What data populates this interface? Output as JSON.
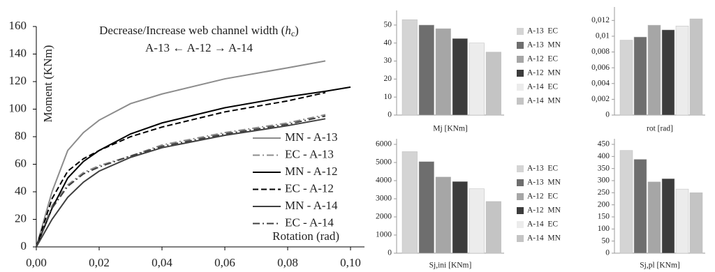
{
  "chart_data": [
    {
      "type": "line",
      "title": "Decrease/Increase web channel width",
      "title_symbol": "h",
      "title_subscript": "c",
      "subtitle": "A-13 ← A-12 → A-14",
      "ylabel": "Moment  (KNm)",
      "xlabel": "Rotation  (rad)",
      "x": [
        0,
        0.005,
        0.01,
        0.015,
        0.02,
        0.03,
        0.04,
        0.06,
        0.08,
        0.092,
        0.1
      ],
      "xlim": [
        0,
        0.1
      ],
      "xticks": [
        {
          "value": 0,
          "label": "0,00"
        },
        {
          "value": 0.02,
          "label": "0,02"
        },
        {
          "value": 0.04,
          "label": "0,04"
        },
        {
          "value": 0.06,
          "label": "0,06"
        },
        {
          "value": 0.08,
          "label": "0,08"
        },
        {
          "value": 0.1,
          "label": "0,10"
        }
      ],
      "ylim": [
        0,
        160
      ],
      "yticks": [
        0,
        20,
        40,
        60,
        80,
        100,
        120,
        140,
        160
      ],
      "legend": "lower right",
      "series": [
        {
          "name": "MN - A-13",
          "color": "#8c8c8c",
          "dash": "solid",
          "values": [
            0,
            40,
            70,
            83,
            92,
            104,
            111,
            122,
            130,
            135,
            null
          ]
        },
        {
          "name": "EC - A-13",
          "color": "#8c8c8c",
          "dash": "dashdot",
          "values": [
            0,
            30,
            45,
            54,
            59,
            66,
            74,
            83,
            90,
            96,
            null
          ]
        },
        {
          "name": "MN - A-12",
          "color": "#000000",
          "dash": "solid",
          "values": [
            0,
            28,
            50,
            62,
            70,
            82,
            90,
            101,
            109,
            113,
            116
          ]
        },
        {
          "name": "EC - A-12",
          "color": "#000000",
          "dash": "dashed",
          "values": [
            0,
            35,
            55,
            64,
            70,
            80,
            87,
            98,
            106,
            112,
            null
          ]
        },
        {
          "name": "MN - A-14",
          "color": "#404040",
          "dash": "solid",
          "values": [
            0,
            20,
            36,
            47,
            55,
            65,
            72,
            81,
            88,
            93,
            null
          ]
        },
        {
          "name": "EC - A-14",
          "color": "#404040",
          "dash": "dashdot",
          "values": [
            0,
            28,
            44,
            53,
            58,
            66,
            73,
            82,
            89,
            95,
            null
          ]
        }
      ]
    },
    {
      "type": "bar",
      "xlabel": "Mj [KNm]",
      "categories": [
        "A-13  EC",
        "A-13  MN",
        "A-12  EC",
        "A-12  MN",
        "A-14  EC",
        "A-14  MN"
      ],
      "colors": [
        "#d4d4d4",
        "#6e6e6e",
        "#a6a6a6",
        "#3c3c3c",
        "#ececec",
        "#c4c4c4"
      ],
      "values": [
        53,
        50,
        48,
        42.5,
        40,
        35
      ],
      "ylim": [
        0,
        55
      ],
      "yticks": [
        0,
        10,
        20,
        30,
        40,
        50
      ]
    },
    {
      "type": "bar",
      "xlabel": "rot [rad]",
      "colors": [
        "#d4d4d4",
        "#6e6e6e",
        "#a6a6a6",
        "#3c3c3c",
        "#ececec",
        "#c4c4c4"
      ],
      "values": [
        0.0095,
        0.0099,
        0.0114,
        0.0108,
        0.0113,
        0.0122
      ],
      "ylim": [
        0,
        0.013
      ],
      "yticks": [
        0,
        {
          "value": 0.002,
          "label": "0,002"
        },
        {
          "value": 0.004,
          "label": "0,004"
        },
        {
          "value": 0.006,
          "label": "0,006"
        },
        {
          "value": 0.008,
          "label": "0,008"
        },
        {
          "value": 0.01,
          "label": "0,01"
        },
        {
          "value": 0.012,
          "label": "0,012"
        }
      ]
    },
    {
      "type": "bar",
      "xlabel": "Sj,ini [KNm]",
      "categories": [
        "A-13  EC",
        "A-13  MN",
        "A-12  EC",
        "A-12  MN",
        "A-14  EC",
        "A-14  MN"
      ],
      "colors": [
        "#d4d4d4",
        "#6e6e6e",
        "#a6a6a6",
        "#3c3c3c",
        "#ececec",
        "#c4c4c4"
      ],
      "values": [
        5600,
        5050,
        4200,
        3950,
        3550,
        2850
      ],
      "ylim": [
        0,
        6000
      ],
      "yticks": [
        0,
        1000,
        2000,
        3000,
        4000,
        5000,
        6000
      ]
    },
    {
      "type": "bar",
      "xlabel": "Sj,pl [KNm]",
      "colors": [
        "#d4d4d4",
        "#6e6e6e",
        "#a6a6a6",
        "#3c3c3c",
        "#ececec",
        "#c4c4c4"
      ],
      "values": [
        425,
        388,
        295,
        308,
        265,
        250
      ],
      "ylim": [
        0,
        450
      ],
      "yticks": [
        0,
        50,
        100,
        150,
        200,
        250,
        300,
        350,
        400,
        450
      ]
    }
  ]
}
